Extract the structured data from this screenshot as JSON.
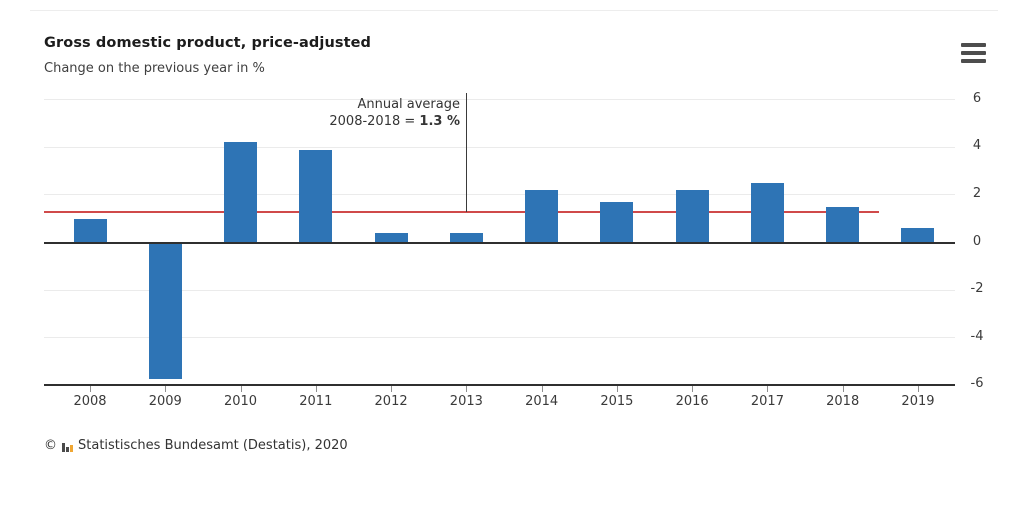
{
  "header": {
    "title": "Gross domestic product, price-adjusted",
    "subtitle": "Change on the previous year in %",
    "menu_icon": "hamburger-menu-icon"
  },
  "annotation": {
    "line1": "Annual average",
    "line2_prefix": "2008-2018 = ",
    "line2_value": "1.3 %"
  },
  "chart_data": {
    "type": "bar",
    "title": "Gross domestic product, price-adjusted",
    "ylabel": "Change on the previous year in %",
    "categories": [
      "2008",
      "2009",
      "2010",
      "2011",
      "2012",
      "2013",
      "2014",
      "2015",
      "2016",
      "2017",
      "2018",
      "2019"
    ],
    "values": [
      1.0,
      -5.7,
      4.2,
      3.9,
      0.4,
      0.4,
      2.2,
      1.7,
      2.2,
      2.5,
      1.5,
      0.6
    ],
    "ylim": [
      -6,
      6
    ],
    "y_ticks": [
      6,
      4,
      2,
      0,
      -2,
      -4,
      -6
    ],
    "grid": true,
    "legend": "none",
    "bar_color": "#2e74b5",
    "average_line": {
      "value": 1.3,
      "span": [
        "2008",
        "2018"
      ],
      "color": "#d04a4a",
      "label": "Annual average 2008-2018 = 1.3 %"
    }
  },
  "footer": {
    "copyright": "©",
    "logo_icon": "destatis-bar-chart-logo",
    "source": "Statistisches Bundesamt (Destatis), 2020"
  }
}
